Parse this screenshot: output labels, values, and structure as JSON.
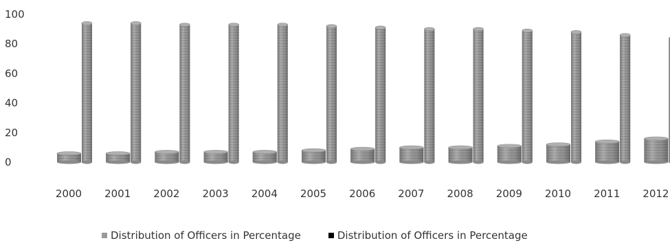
{
  "chart_data": {
    "type": "bar",
    "categories": [
      "2000",
      "2001",
      "2002",
      "2003",
      "2004",
      "2005",
      "2006",
      "2007",
      "2008",
      "2009",
      "2010",
      "2011",
      "2012"
    ],
    "series": [
      {
        "name": "Distribution of Officers in Percentage",
        "color": "#9a9a9a",
        "values": [
          6,
          6,
          7,
          7,
          7,
          8,
          9,
          10,
          10,
          11,
          12,
          14,
          16
        ]
      },
      {
        "name": "Distribution of Officers in Percentage",
        "color": "#9a9a9a",
        "values": [
          94,
          94,
          93,
          93,
          93,
          92,
          91,
          90,
          90,
          89,
          88,
          86,
          84
        ]
      }
    ],
    "legend_colors": [
      "#999999",
      "#000000"
    ],
    "yticks": [
      0,
      20,
      40,
      60,
      80,
      100
    ],
    "ylim": [
      0,
      100
    ],
    "legend_position": "bottom",
    "grid": false,
    "style": "3d-cylinder-columns"
  }
}
